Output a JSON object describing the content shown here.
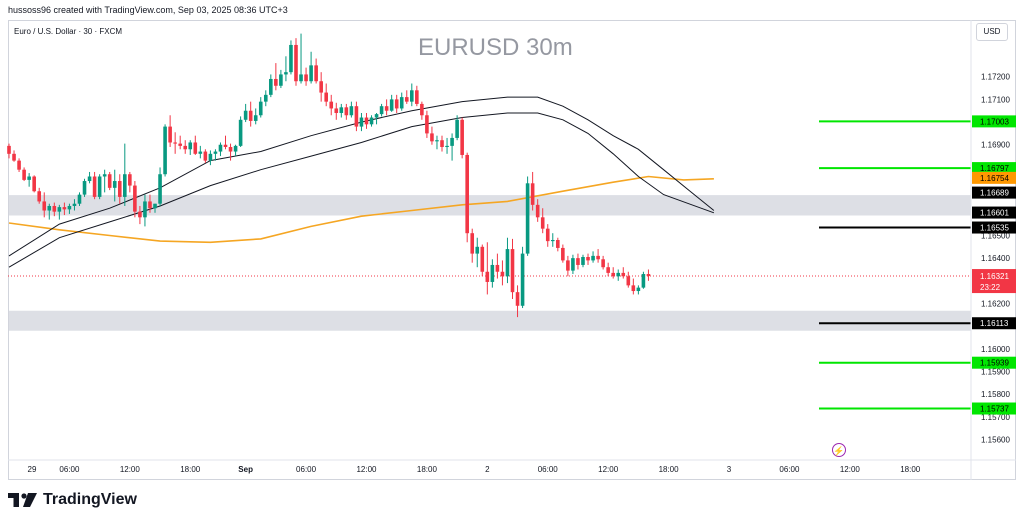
{
  "header": {
    "credit": "hussoss96 created with TradingView.com, Sep 03, 2025 08:36 UTC+3",
    "symbol": "Euro / U.S. Dollar · 30 · FXCM",
    "watermark": "EURUSD 30m",
    "currency": "USD"
  },
  "footer": {
    "brand": "TradingView"
  },
  "colors": {
    "up": "#089981",
    "down": "#f23645",
    "ema_fast": "#131722",
    "sma_slow": "#f5a623",
    "support_green": "#00e600",
    "level_black": "#000000",
    "zone": "#d1d4dc",
    "last_price": "#f23645",
    "brand": "#131722"
  },
  "icons": {
    "alert": "lightning-icon",
    "logo": "tradingview-logo-icon"
  },
  "chart_data": {
    "type": "candlestick",
    "title": "EURUSD 30m",
    "subtitle": "Euro / U.S. Dollar · 30 · FXCM",
    "ylim": [
      1.1551,
      1.1745
    ],
    "y_ticks": [
      "1.17200",
      "1.17100",
      "1.16900",
      "1.16500",
      "1.16400",
      "1.16200",
      "1.16000",
      "1.15900",
      "1.15800",
      "1.15700",
      "1.15600"
    ],
    "x_ticks": [
      {
        "label": "29",
        "bar": 0
      },
      {
        "label": "06:00",
        "bar": 12
      },
      {
        "label": "12:00",
        "bar": 24
      },
      {
        "label": "18:00",
        "bar": 36
      },
      {
        "label": "Sep",
        "bar": 47,
        "bold": true
      },
      {
        "label": "06:00",
        "bar": 59
      },
      {
        "label": "12:00",
        "bar": 71
      },
      {
        "label": "18:00",
        "bar": 83
      },
      {
        "label": "2",
        "bar": 95
      },
      {
        "label": "06:00",
        "bar": 107
      },
      {
        "label": "12:00",
        "bar": 119
      },
      {
        "label": "18:00",
        "bar": 131
      },
      {
        "label": "3",
        "bar": 143
      },
      {
        "label": "06:00",
        "bar": 155
      },
      {
        "label": "12:00",
        "bar": 167
      },
      {
        "label": "18:00",
        "bar": 179
      }
    ],
    "candles": [
      [
        1.16895,
        1.16905,
        1.1684,
        1.1686
      ],
      [
        1.1686,
        1.16875,
        1.16825,
        1.1683
      ],
      [
        1.1683,
        1.1684,
        1.1678,
        1.1679
      ],
      [
        1.1679,
        1.168,
        1.1674,
        1.16745
      ],
      [
        1.16745,
        1.16775,
        1.16715,
        1.1676
      ],
      [
        1.1676,
        1.16765,
        1.1669,
        1.16695
      ],
      [
        1.16695,
        1.1671,
        1.1664,
        1.1665
      ],
      [
        1.1665,
        1.1669,
        1.1658,
        1.1661
      ],
      [
        1.1661,
        1.1664,
        1.1657,
        1.1663
      ],
      [
        1.1663,
        1.16645,
        1.16585,
        1.16605
      ],
      [
        1.16605,
        1.16635,
        1.1657,
        1.16625
      ],
      [
        1.16625,
        1.16645,
        1.1659,
        1.16615
      ],
      [
        1.16615,
        1.1664,
        1.16595,
        1.1663
      ],
      [
        1.1663,
        1.1666,
        1.1661,
        1.1664
      ],
      [
        1.1664,
        1.1669,
        1.1663,
        1.1668
      ],
      [
        1.1668,
        1.1675,
        1.1667,
        1.1674
      ],
      [
        1.1674,
        1.1678,
        1.1673,
        1.1676
      ],
      [
        1.1676,
        1.1678,
        1.1666,
        1.1667
      ],
      [
        1.1667,
        1.1677,
        1.1666,
        1.1676
      ],
      [
        1.1676,
        1.1679,
        1.1669,
        1.1677
      ],
      [
        1.1677,
        1.1678,
        1.167,
        1.1671
      ],
      [
        1.1671,
        1.1679,
        1.1665,
        1.1674
      ],
      [
        1.1674,
        1.1677,
        1.1664,
        1.1667
      ],
      [
        1.1667,
        1.16905,
        1.1663,
        1.1677
      ],
      [
        1.1677,
        1.1678,
        1.1669,
        1.1672
      ],
      [
        1.1672,
        1.1674,
        1.1658,
        1.16605
      ],
      [
        1.16605,
        1.1663,
        1.1655,
        1.1658
      ],
      [
        1.1658,
        1.1668,
        1.1654,
        1.1665
      ],
      [
        1.1665,
        1.1668,
        1.166,
        1.1662
      ],
      [
        1.1662,
        1.1664,
        1.166,
        1.1664
      ],
      [
        1.1664,
        1.168,
        1.1663,
        1.1677
      ],
      [
        1.1677,
        1.1699,
        1.1676,
        1.1698
      ],
      [
        1.1698,
        1.1703,
        1.1689,
        1.1691
      ],
      [
        1.1691,
        1.16955,
        1.1686,
        1.16905
      ],
      [
        1.16905,
        1.1694,
        1.1688,
        1.16895
      ],
      [
        1.16895,
        1.1692,
        1.1686,
        1.1688
      ],
      [
        1.1688,
        1.1692,
        1.16855,
        1.1691
      ],
      [
        1.1691,
        1.1694,
        1.16855,
        1.1686
      ],
      [
        1.1686,
        1.16895,
        1.1684,
        1.1687
      ],
      [
        1.1687,
        1.1688,
        1.1682,
        1.1683
      ],
      [
        1.1683,
        1.16875,
        1.1681,
        1.1686
      ],
      [
        1.1686,
        1.1688,
        1.1683,
        1.1687
      ],
      [
        1.1687,
        1.1691,
        1.1685,
        1.169
      ],
      [
        1.169,
        1.1694,
        1.1688,
        1.1689
      ],
      [
        1.1689,
        1.16905,
        1.1683,
        1.1687
      ],
      [
        1.1687,
        1.169,
        1.1685,
        1.16895
      ],
      [
        1.16895,
        1.17025,
        1.1689,
        1.1701
      ],
      [
        1.1701,
        1.1708,
        1.17,
        1.1705
      ],
      [
        1.1705,
        1.1709,
        1.1698,
        1.17005
      ],
      [
        1.17005,
        1.1706,
        1.1699,
        1.1703
      ],
      [
        1.1703,
        1.1711,
        1.1702,
        1.1709
      ],
      [
        1.1709,
        1.1714,
        1.1707,
        1.1712
      ],
      [
        1.1712,
        1.1721,
        1.1711,
        1.1719
      ],
      [
        1.1719,
        1.1726,
        1.1714,
        1.1716
      ],
      [
        1.1716,
        1.1723,
        1.1715,
        1.1721
      ],
      [
        1.1721,
        1.1729,
        1.1718,
        1.1722
      ],
      [
        1.1722,
        1.1736,
        1.1721,
        1.1734
      ],
      [
        1.1734,
        1.1737,
        1.1716,
        1.1718
      ],
      [
        1.1718,
        1.1739,
        1.1717,
        1.1721
      ],
      [
        1.1721,
        1.1724,
        1.1716,
        1.1718
      ],
      [
        1.1718,
        1.1731,
        1.1717,
        1.1725
      ],
      [
        1.1725,
        1.1728,
        1.1717,
        1.1718
      ],
      [
        1.1718,
        1.1722,
        1.1709,
        1.1713
      ],
      [
        1.1713,
        1.1717,
        1.1707,
        1.1709
      ],
      [
        1.1709,
        1.1712,
        1.1703,
        1.1706
      ],
      [
        1.1706,
        1.17085,
        1.1701,
        1.1704
      ],
      [
        1.1704,
        1.1708,
        1.1702,
        1.17065
      ],
      [
        1.17065,
        1.1708,
        1.1701,
        1.1703
      ],
      [
        1.1703,
        1.1709,
        1.1702,
        1.1707
      ],
      [
        1.1707,
        1.1709,
        1.1696,
        1.1698
      ],
      [
        1.1698,
        1.1704,
        1.1696,
        1.1702
      ],
      [
        1.1702,
        1.1704,
        1.1697,
        1.1699
      ],
      [
        1.1699,
        1.1703,
        1.1698,
        1.1702
      ],
      [
        1.1702,
        1.1704,
        1.1699,
        1.17035
      ],
      [
        1.17035,
        1.1708,
        1.17025,
        1.1707
      ],
      [
        1.1707,
        1.171,
        1.1703,
        1.1705
      ],
      [
        1.1705,
        1.1712,
        1.17045,
        1.171
      ],
      [
        1.171,
        1.1712,
        1.1704,
        1.1706
      ],
      [
        1.1706,
        1.1713,
        1.1705,
        1.1711
      ],
      [
        1.1711,
        1.1714,
        1.1708,
        1.1709
      ],
      [
        1.1709,
        1.1717,
        1.1707,
        1.1714
      ],
      [
        1.1714,
        1.1716,
        1.1707,
        1.1708
      ],
      [
        1.1708,
        1.1709,
        1.1701,
        1.1703
      ],
      [
        1.1703,
        1.1705,
        1.1693,
        1.1695
      ],
      [
        1.1695,
        1.1698,
        1.169,
        1.16915
      ],
      [
        1.16915,
        1.1694,
        1.1688,
        1.1692
      ],
      [
        1.1692,
        1.1694,
        1.1687,
        1.1689
      ],
      [
        1.1689,
        1.1693,
        1.1686,
        1.16895
      ],
      [
        1.16895,
        1.1695,
        1.1683,
        1.1693
      ],
      [
        1.1693,
        1.1703,
        1.1692,
        1.1701
      ],
      [
        1.1701,
        1.1702,
        1.1684,
        1.16855
      ],
      [
        1.16855,
        1.16865,
        1.1647,
        1.1651
      ],
      [
        1.1651,
        1.1653,
        1.1638,
        1.1642
      ],
      [
        1.1642,
        1.1649,
        1.1636,
        1.1645
      ],
      [
        1.1645,
        1.1646,
        1.1632,
        1.1634
      ],
      [
        1.1634,
        1.1647,
        1.1624,
        1.16295
      ],
      [
        1.16295,
        1.16395,
        1.1627,
        1.1637
      ],
      [
        1.1637,
        1.1642,
        1.1631,
        1.1634
      ],
      [
        1.1634,
        1.1639,
        1.1628,
        1.1632
      ],
      [
        1.1632,
        1.1649,
        1.1629,
        1.1644
      ],
      [
        1.1644,
        1.16485,
        1.1622,
        1.1625
      ],
      [
        1.1625,
        1.1628,
        1.1614,
        1.1619
      ],
      [
        1.1619,
        1.1645,
        1.1618,
        1.1642
      ],
      [
        1.1642,
        1.1676,
        1.1641,
        1.1673
      ],
      [
        1.1673,
        1.1678,
        1.1661,
        1.16635
      ],
      [
        1.16635,
        1.1666,
        1.1656,
        1.1658
      ],
      [
        1.1658,
        1.1662,
        1.1651,
        1.1653
      ],
      [
        1.1653,
        1.1655,
        1.1645,
        1.16475
      ],
      [
        1.16475,
        1.1651,
        1.1645,
        1.1648
      ],
      [
        1.1648,
        1.1649,
        1.1643,
        1.16445
      ],
      [
        1.16445,
        1.1646,
        1.1638,
        1.1639
      ],
      [
        1.1639,
        1.1641,
        1.1632,
        1.16345
      ],
      [
        1.16345,
        1.16415,
        1.1633,
        1.164
      ],
      [
        1.164,
        1.1642,
        1.1635,
        1.1637
      ],
      [
        1.1637,
        1.16415,
        1.1636,
        1.16405
      ],
      [
        1.16405,
        1.1642,
        1.1637,
        1.1639
      ],
      [
        1.1639,
        1.1643,
        1.1638,
        1.1641
      ],
      [
        1.1641,
        1.1644,
        1.1638,
        1.16395
      ],
      [
        1.16395,
        1.1641,
        1.1635,
        1.1636
      ],
      [
        1.1636,
        1.1638,
        1.1632,
        1.16335
      ],
      [
        1.16335,
        1.1636,
        1.1631,
        1.1632
      ],
      [
        1.1632,
        1.1635,
        1.163,
        1.16335
      ],
      [
        1.16335,
        1.1636,
        1.1631,
        1.1632
      ],
      [
        1.1632,
        1.1634,
        1.1627,
        1.1628
      ],
      [
        1.1628,
        1.1631,
        1.1624,
        1.16255
      ],
      [
        1.16255,
        1.1628,
        1.1624,
        1.1627
      ],
      [
        1.1627,
        1.1634,
        1.16265,
        1.1633
      ],
      [
        1.1633,
        1.1635,
        1.163,
        1.16321
      ]
    ],
    "ema_fast": {
      "type": "line",
      "values": [
        [
          0,
          1.1641
        ],
        [
          10,
          1.1655
        ],
        [
          20,
          1.1662
        ],
        [
          30,
          1.1671
        ],
        [
          40,
          1.1683
        ],
        [
          50,
          1.1687
        ],
        [
          60,
          1.1694
        ],
        [
          70,
          1.17
        ],
        [
          80,
          1.1705
        ],
        [
          90,
          1.1709
        ],
        [
          99,
          1.1711
        ],
        [
          105,
          1.1711
        ],
        [
          110,
          1.1707
        ],
        [
          115,
          1.1701
        ],
        [
          120,
          1.1694
        ],
        [
          125,
          1.1688
        ],
        [
          130,
          1.1679
        ],
        [
          135,
          1.167
        ],
        [
          140,
          1.1661
        ]
      ]
    },
    "ema_slow": {
      "type": "line",
      "values": [
        [
          0,
          1.1636
        ],
        [
          10,
          1.1649
        ],
        [
          20,
          1.1656
        ],
        [
          30,
          1.1663
        ],
        [
          40,
          1.1672
        ],
        [
          50,
          1.1679
        ],
        [
          60,
          1.1685
        ],
        [
          70,
          1.1691
        ],
        [
          80,
          1.1698
        ],
        [
          90,
          1.1702
        ],
        [
          99,
          1.1704
        ],
        [
          105,
          1.1704
        ],
        [
          110,
          1.1701
        ],
        [
          115,
          1.1695
        ],
        [
          120,
          1.1686
        ],
        [
          125,
          1.1676
        ],
        [
          130,
          1.1668
        ],
        [
          135,
          1.1664
        ],
        [
          140,
          1.166
        ]
      ]
    },
    "sma_slow": {
      "type": "line",
      "values": [
        [
          0,
          1.16555
        ],
        [
          10,
          1.16525
        ],
        [
          20,
          1.165
        ],
        [
          30,
          1.16475
        ],
        [
          40,
          1.1647
        ],
        [
          50,
          1.16485
        ],
        [
          60,
          1.1654
        ],
        [
          70,
          1.16585
        ],
        [
          80,
          1.1661
        ],
        [
          90,
          1.16635
        ],
        [
          99,
          1.1665
        ],
        [
          110,
          1.16695
        ],
        [
          120,
          1.16735
        ],
        [
          127,
          1.1676
        ],
        [
          134,
          1.16745
        ],
        [
          140,
          1.1675
        ]
      ]
    },
    "zones": [
      {
        "from": 1.16588,
        "to": 1.16678
      },
      {
        "from": 1.1608,
        "to": 1.16168
      }
    ],
    "levels": [
      {
        "value": 1.17003,
        "label": "1.17003",
        "color": "#00e600",
        "text_color": "#000000",
        "line": true
      },
      {
        "value": 1.16797,
        "label": "1.16797",
        "color": "#00e600",
        "text_color": "#000000",
        "line": true
      },
      {
        "value": 1.16754,
        "label": "1.16754",
        "color": "#ff9800",
        "text_color": "#000000",
        "line": false
      },
      {
        "value": 1.16689,
        "label": "1.16689",
        "color": "#000000",
        "text_color": "#ffffff",
        "line": false
      },
      {
        "value": 1.16601,
        "label": "1.16601",
        "color": "#000000",
        "text_color": "#ffffff",
        "line": false
      },
      {
        "value": 1.16535,
        "label": "1.16535",
        "color": "#000000",
        "text_color": "#ffffff",
        "line": true
      },
      {
        "value": 1.16113,
        "label": "1.16113",
        "color": "#000000",
        "text_color": "#ffffff",
        "line": true
      },
      {
        "value": 1.15939,
        "label": "1.15939",
        "color": "#00e600",
        "text_color": "#000000",
        "line": true
      },
      {
        "value": 1.15737,
        "label": "1.15737",
        "color": "#00e600",
        "text_color": "#000000",
        "line": true
      }
    ],
    "last_price": {
      "value": 1.16321,
      "label": "1.16321",
      "countdown": "23:22"
    }
  }
}
